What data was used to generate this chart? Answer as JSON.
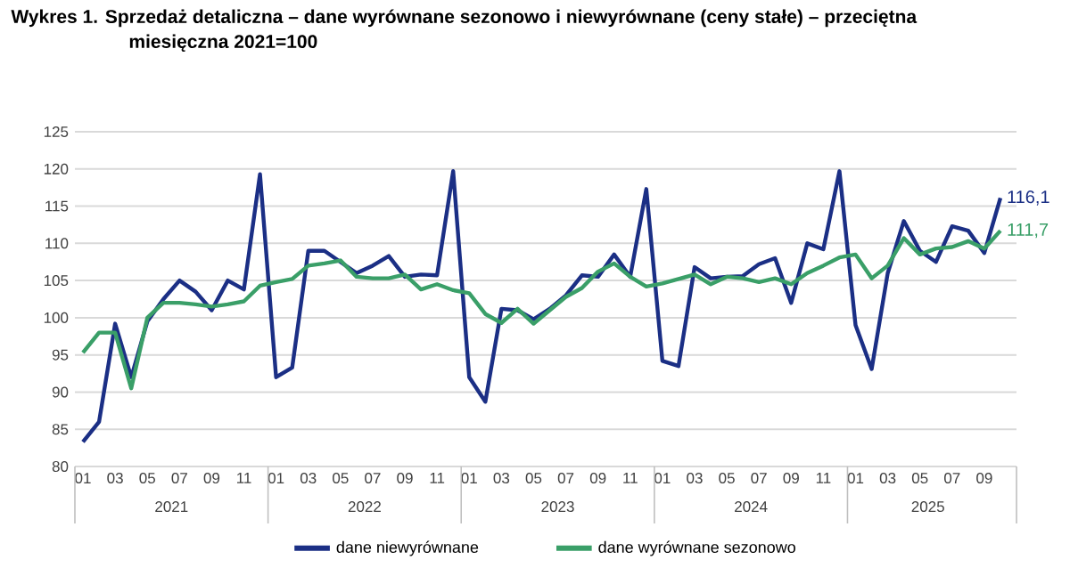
{
  "chart_data": {
    "type": "line",
    "title": "Wykres 1. Sprzedaż detaliczna – dane wyrównane sezonowo i niewyrównane (ceny stałe) – przeciętna miesięczna 2021=100",
    "categories": [
      "01",
      null,
      "03",
      null,
      "05",
      null,
      "07",
      null,
      "09",
      null,
      "11",
      null,
      "01",
      null,
      "03",
      null,
      "05",
      null,
      "07",
      null,
      "09",
      null,
      "11",
      null,
      "01",
      null,
      "03",
      null,
      "05",
      null,
      "07",
      null,
      "09",
      null,
      "11",
      null,
      "01",
      null,
      "03",
      null,
      "05",
      null,
      "07",
      null,
      "09",
      null,
      "11",
      null,
      "01",
      null,
      "03",
      null,
      "05",
      null,
      "07",
      null,
      "09",
      null
    ],
    "series": [
      {
        "name": "dane niewyrównane",
        "color": "#1b2f85",
        "values": [
          83.3,
          86,
          99.2,
          92,
          99.5,
          102.5,
          105,
          103.5,
          101,
          105,
          103.8,
          119.3,
          92,
          93.3,
          109,
          109,
          107.5,
          106,
          107,
          108.3,
          105.5,
          105.8,
          105.7,
          119.7,
          92,
          88.7,
          101.2,
          101,
          99.8,
          101.2,
          103,
          105.7,
          105.5,
          108.5,
          105.5,
          117.3,
          94.2,
          93.5,
          106.8,
          105.3,
          105.5,
          105.6,
          107.2,
          108,
          102,
          110,
          109.2,
          119.7,
          99,
          93.1,
          106,
          113,
          109,
          107.5,
          112.3,
          111.7,
          108.7,
          116.1
        ],
        "value_labels": [
          null,
          null,
          null,
          null,
          null,
          null,
          null,
          null,
          null,
          null,
          null,
          null,
          null,
          null,
          null,
          null,
          null,
          null,
          null,
          null,
          null,
          null,
          null,
          null,
          null,
          null,
          null,
          null,
          null,
          null,
          null,
          null,
          null,
          null,
          null,
          null,
          null,
          null,
          null,
          null,
          null,
          null,
          null,
          null,
          null,
          null,
          null,
          null,
          null,
          null,
          null,
          null,
          null,
          null,
          null,
          null,
          null,
          "116,1"
        ]
      },
      {
        "name": "dane wyrównane sezonowo",
        "color": "#3a9f68",
        "values": [
          95.3,
          98,
          98,
          90.5,
          100,
          102,
          102,
          101.8,
          101.5,
          101.8,
          102.2,
          104.3,
          104.8,
          105.2,
          107,
          107.3,
          107.7,
          105.5,
          105.3,
          105.3,
          105.8,
          103.8,
          104.5,
          103.7,
          103.3,
          100.5,
          99.3,
          101.2,
          99.2,
          101,
          102.8,
          104,
          106.2,
          107.3,
          105.5,
          104.2,
          104.6,
          105.2,
          105.8,
          104.5,
          105.5,
          105.3,
          104.8,
          105.3,
          104.5,
          106,
          107,
          108.1,
          108.5,
          105.3,
          107,
          110.7,
          108.5,
          109.3,
          109.5,
          110.3,
          109.3,
          111.7
        ],
        "value_labels": [
          null,
          null,
          null,
          null,
          null,
          null,
          null,
          null,
          null,
          null,
          null,
          null,
          null,
          null,
          null,
          null,
          null,
          null,
          null,
          null,
          null,
          null,
          null,
          null,
          null,
          null,
          null,
          null,
          null,
          null,
          null,
          null,
          null,
          null,
          null,
          null,
          null,
          null,
          null,
          null,
          null,
          null,
          null,
          null,
          null,
          null,
          null,
          null,
          null,
          null,
          null,
          null,
          null,
          null,
          null,
          null,
          null,
          "111,7"
        ]
      }
    ],
    "annotations": [
      "2021",
      "2022",
      "2023",
      "2024",
      "2025"
    ],
    "ylim": [
      80,
      125
    ],
    "yticks": [
      80,
      85,
      90,
      95,
      100,
      105,
      110,
      115,
      120,
      125
    ],
    "grid": "y",
    "legend": "bottom",
    "marker": "none",
    "line_style": "solid"
  }
}
